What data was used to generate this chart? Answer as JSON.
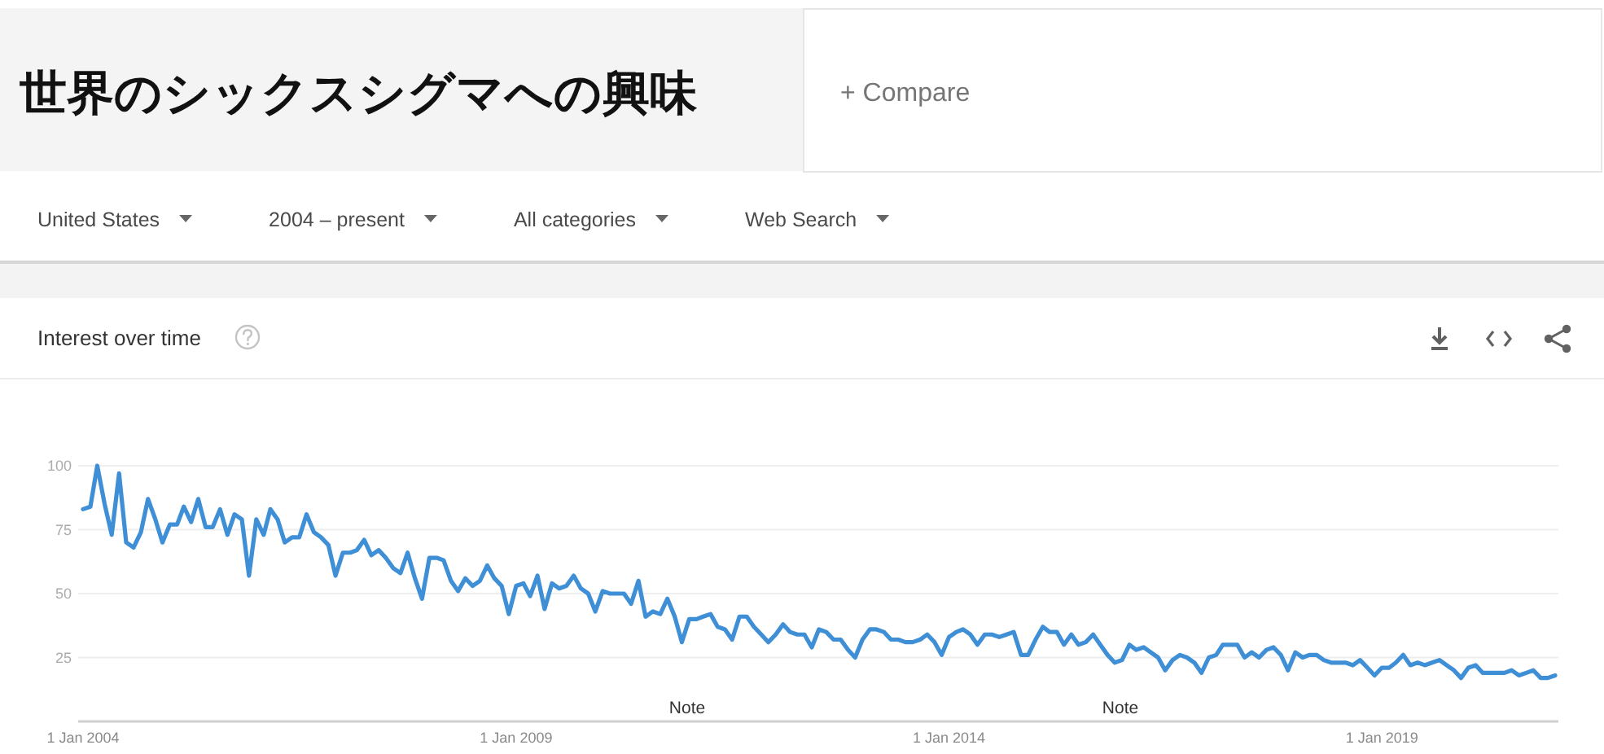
{
  "chart_data": {
    "type": "line",
    "title": "世界のシックスシグマへの興味",
    "subtitle": "Interest over time",
    "annotations": [
      "+ Compare",
      "United States",
      "2004 – present",
      "All categories",
      "Web Search",
      "Note",
      "Note"
    ],
    "x": [
      "2004-01",
      "2004-02",
      "2004-03",
      "2004-04",
      "2004-05",
      "2004-06",
      "2004-07",
      "2004-08",
      "2004-09",
      "2004-10",
      "2004-11",
      "2004-12",
      "2005-01",
      "2005-02",
      "2005-03",
      "2005-04",
      "2005-05",
      "2005-06",
      "2005-07",
      "2005-08",
      "2005-09",
      "2005-10",
      "2005-11",
      "2005-12",
      "2006-01",
      "2006-02",
      "2006-03",
      "2006-04",
      "2006-05",
      "2006-06",
      "2006-07",
      "2006-08",
      "2006-09",
      "2006-10",
      "2006-11",
      "2006-12",
      "2007-01",
      "2007-02",
      "2007-03",
      "2007-04",
      "2007-05",
      "2007-06",
      "2007-07",
      "2007-08",
      "2007-09",
      "2007-10",
      "2007-11",
      "2007-12",
      "2008-01",
      "2008-02",
      "2008-03",
      "2008-04",
      "2008-05",
      "2008-06",
      "2008-07",
      "2008-08",
      "2008-09",
      "2008-10",
      "2008-11",
      "2008-12",
      "2009-01",
      "2009-02",
      "2009-03",
      "2009-04",
      "2009-05",
      "2009-06",
      "2009-07",
      "2009-08",
      "2009-09",
      "2009-10",
      "2009-11",
      "2009-12",
      "2010-01",
      "2010-02",
      "2010-03",
      "2010-04",
      "2010-05",
      "2010-06",
      "2010-07",
      "2010-08",
      "2010-09",
      "2010-10",
      "2010-11",
      "2010-12",
      "2011-01",
      "2011-02",
      "2011-03",
      "2011-04",
      "2011-05",
      "2011-06",
      "2011-07",
      "2011-08",
      "2011-09",
      "2011-10",
      "2011-11",
      "2011-12",
      "2012-01",
      "2012-02",
      "2012-03",
      "2012-04",
      "2012-05",
      "2012-06",
      "2012-07",
      "2012-08",
      "2012-09",
      "2012-10",
      "2012-11",
      "2012-12",
      "2013-01",
      "2013-02",
      "2013-03",
      "2013-04",
      "2013-05",
      "2013-06",
      "2013-07",
      "2013-08",
      "2013-09",
      "2013-10",
      "2013-11",
      "2013-12",
      "2014-01",
      "2014-02",
      "2014-03",
      "2014-04",
      "2014-05",
      "2014-06",
      "2014-07",
      "2014-08",
      "2014-09",
      "2014-10",
      "2014-11",
      "2014-12",
      "2015-01",
      "2015-02",
      "2015-03",
      "2015-04",
      "2015-05",
      "2015-06",
      "2015-07",
      "2015-08",
      "2015-09",
      "2015-10",
      "2015-11",
      "2015-12",
      "2016-01",
      "2016-02",
      "2016-03",
      "2016-04",
      "2016-05",
      "2016-06",
      "2016-07",
      "2016-08",
      "2016-09",
      "2016-10",
      "2016-11",
      "2016-12",
      "2017-01",
      "2017-02",
      "2017-03",
      "2017-04",
      "2017-05",
      "2017-06",
      "2017-07",
      "2017-08",
      "2017-09",
      "2017-10",
      "2017-11",
      "2017-12",
      "2018-01",
      "2018-02",
      "2018-03",
      "2018-04",
      "2018-05",
      "2018-06",
      "2018-07",
      "2018-08",
      "2018-09",
      "2018-10",
      "2018-11",
      "2018-12",
      "2019-01",
      "2019-02",
      "2019-03",
      "2019-04",
      "2019-05",
      "2019-06",
      "2019-07",
      "2019-08",
      "2019-09",
      "2019-10",
      "2019-11",
      "2019-12",
      "2020-01",
      "2020-02",
      "2020-03",
      "2020-04",
      "2020-05",
      "2020-06",
      "2020-07",
      "2020-08",
      "2020-09",
      "2020-10",
      "2020-11",
      "2020-12",
      "2021-01"
    ],
    "series": [
      {
        "color": "#3f8fd6",
        "values": [
          83,
          84,
          100,
          85,
          73,
          97,
          70,
          68,
          74,
          87,
          79,
          70,
          77,
          77,
          84,
          78,
          87,
          76,
          76,
          83,
          73,
          81,
          79,
          57,
          79,
          73,
          83,
          79,
          70,
          72,
          72,
          81,
          74,
          72,
          69,
          57,
          66,
          66,
          67,
          71,
          65,
          67,
          64,
          60,
          58,
          66,
          56,
          48,
          64,
          64,
          63,
          55,
          51,
          56,
          53,
          55,
          61,
          56,
          53,
          42,
          53,
          54,
          49,
          57,
          44,
          54,
          52,
          53,
          57,
          52,
          50,
          43,
          51,
          50,
          50,
          50,
          46,
          55,
          41,
          43,
          42,
          48,
          41,
          31,
          40,
          40,
          41,
          42,
          37,
          36,
          32,
          41,
          41,
          37,
          34,
          31,
          34,
          38,
          35,
          34,
          34,
          29,
          36,
          35,
          32,
          32,
          28,
          25,
          32,
          36,
          36,
          35,
          32,
          32,
          31,
          31,
          32,
          34,
          31,
          26,
          33,
          35,
          36,
          34,
          30,
          34,
          34,
          33,
          34,
          35,
          26,
          26,
          32,
          37,
          35,
          35,
          30,
          34,
          30,
          31,
          34,
          30,
          26,
          23,
          24,
          30,
          28,
          29,
          27,
          25,
          20,
          24,
          26,
          25,
          23,
          19,
          25,
          26,
          30,
          30,
          30,
          25,
          27,
          25,
          28,
          29,
          26,
          20,
          27,
          25,
          26,
          26,
          24,
          23,
          23,
          23,
          22,
          24,
          21,
          18,
          21,
          21,
          23,
          26,
          22,
          23,
          22,
          23,
          24,
          22,
          20,
          17,
          21,
          22,
          19,
          19,
          19,
          19,
          20,
          18,
          19,
          20,
          17,
          17,
          18
        ]
      }
    ],
    "xlim": [
      "2004-01",
      "2021-01"
    ],
    "xticks": [
      {
        "value": "2004-01-01",
        "label": "1 Jan 2004"
      },
      {
        "value": "2009-01-01",
        "label": "1 Jan 2009"
      },
      {
        "value": "2014-01-01",
        "label": "1 Jan 2014"
      },
      {
        "value": "2019-01-01",
        "label": "1 Jan 2019"
      }
    ],
    "ylim": [
      0,
      100
    ],
    "yticks": [
      25,
      50,
      75,
      100
    ],
    "grid": "y",
    "line_style": "solid"
  }
}
